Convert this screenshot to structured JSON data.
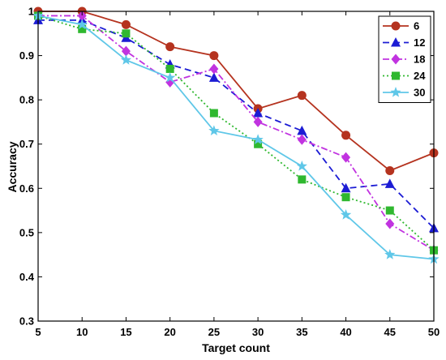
{
  "chart_data": {
    "type": "line",
    "title": "",
    "xlabel": "Target count",
    "ylabel": "Accuracy",
    "xlim": [
      5,
      50
    ],
    "ylim": [
      0.3,
      1.0
    ],
    "x": [
      5,
      10,
      15,
      20,
      25,
      30,
      35,
      40,
      45,
      50
    ],
    "x_ticks": [
      "5",
      "10",
      "15",
      "20",
      "25",
      "30",
      "35",
      "40",
      "45",
      "50"
    ],
    "y_ticks": [
      "0.3",
      "0.4",
      "0.5",
      "0.6",
      "0.7",
      "0.8",
      "0.9",
      "1"
    ],
    "grid": false,
    "legend_position": "top-right",
    "series": [
      {
        "name": "6",
        "color": "#b5331f",
        "marker": "circle",
        "line": "solid",
        "values": [
          1.0,
          1.0,
          0.97,
          0.92,
          0.9,
          0.78,
          0.81,
          0.72,
          0.64,
          0.68
        ]
      },
      {
        "name": "12",
        "color": "#1c1cd4",
        "marker": "triangle",
        "line": "dashed",
        "values": [
          0.98,
          0.98,
          0.94,
          0.88,
          0.85,
          0.77,
          0.73,
          0.6,
          0.61,
          0.51
        ]
      },
      {
        "name": "18",
        "color": "#c133e0",
        "marker": "diamond",
        "line": "dashdot",
        "values": [
          0.99,
          0.99,
          0.91,
          0.84,
          0.87,
          0.75,
          0.71,
          0.67,
          0.52,
          0.46
        ]
      },
      {
        "name": "24",
        "color": "#2fb82f",
        "marker": "square",
        "line": "dotted",
        "values": [
          0.99,
          0.96,
          0.95,
          0.87,
          0.77,
          0.7,
          0.62,
          0.58,
          0.55,
          0.46
        ]
      },
      {
        "name": "30",
        "color": "#5fc7e8",
        "marker": "star",
        "line": "solid",
        "values": [
          0.99,
          0.97,
          0.89,
          0.85,
          0.73,
          0.71,
          0.65,
          0.54,
          0.45,
          0.44
        ]
      }
    ]
  }
}
